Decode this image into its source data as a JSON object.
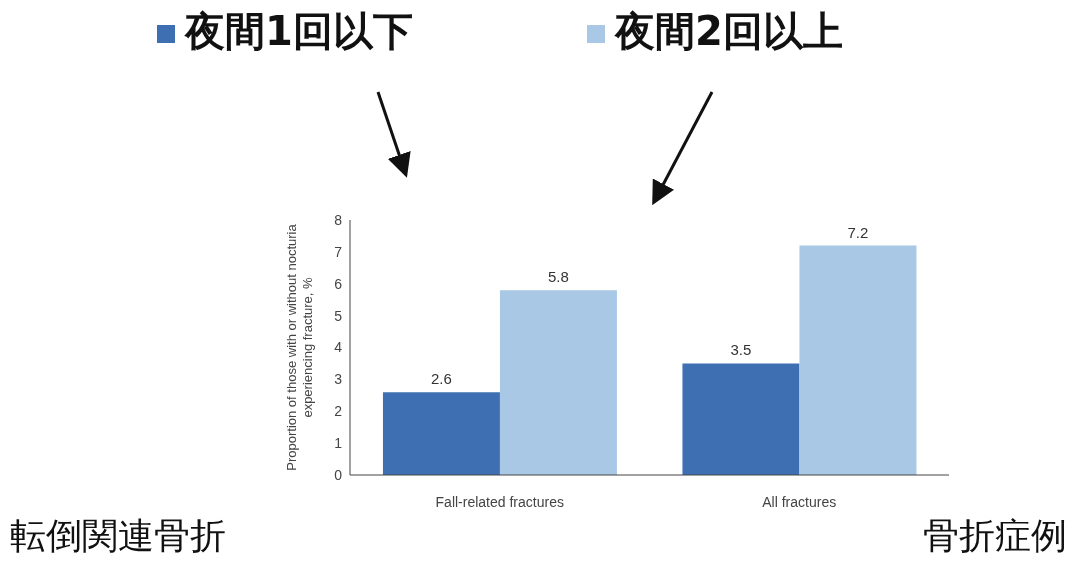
{
  "chart_data": {
    "type": "bar",
    "categories": [
      "Fall-related fractures",
      "All fractures"
    ],
    "series": [
      {
        "name": "夜間1回以下",
        "color": "#3e6fb2",
        "values": [
          2.6,
          3.5
        ]
      },
      {
        "name": "夜間2回以上",
        "color": "#a8c8e6",
        "values": [
          5.8,
          7.2
        ]
      }
    ],
    "ylabel": "Proportion of those with or without nocturia experiencing fracture, %",
    "ylim": [
      0,
      8
    ],
    "yticks": [
      0,
      1,
      2,
      3,
      4,
      5,
      6,
      7,
      8
    ],
    "data_labels": true,
    "legend": "top",
    "annotations": [
      "転倒関連骨折",
      "骨折症例"
    ]
  }
}
